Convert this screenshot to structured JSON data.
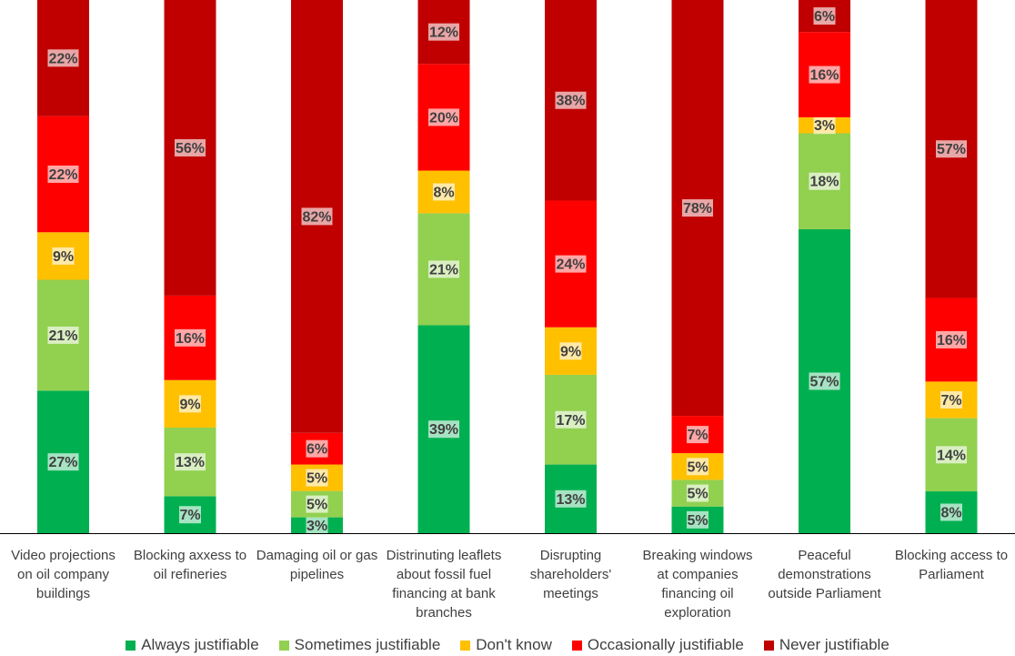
{
  "chart_data": {
    "type": "bar",
    "stacked": true,
    "percent_scale": true,
    "title": "",
    "xlabel": "",
    "ylabel": "",
    "ylim": [
      0,
      100
    ],
    "grid": false,
    "legend_position": "bottom",
    "categories": [
      [
        "Video projections",
        "on oil company",
        "buildings"
      ],
      [
        "Blocking axxess to",
        "oil refineries"
      ],
      [
        "Damaging oil or gas",
        "pipelines"
      ],
      [
        "Distrinuting leaflets",
        "about fossil fuel",
        "financing at bank",
        "branches"
      ],
      [
        "Disrupting",
        "shareholders'",
        "meetings"
      ],
      [
        "Breaking windows",
        "at companies",
        "financing oil",
        "exploration"
      ],
      [
        "Peaceful",
        "demonstrations",
        "outside Parliament"
      ],
      [
        "Blocking access to",
        "Parliament"
      ]
    ],
    "series": [
      {
        "name": "Always justifiable",
        "color": "#00b050",
        "values": [
          27,
          7,
          3,
          39,
          13,
          5,
          57,
          8
        ]
      },
      {
        "name": "Sometimes justifiable",
        "color": "#92d050",
        "values": [
          21,
          13,
          5,
          21,
          17,
          5,
          18,
          14
        ]
      },
      {
        "name": "Don't know",
        "color": "#ffc000",
        "values": [
          9,
          9,
          5,
          8,
          9,
          5,
          3,
          7
        ]
      },
      {
        "name": "Occasionally justifiable",
        "color": "#ff0000",
        "values": [
          22,
          16,
          6,
          20,
          24,
          7,
          16,
          16
        ]
      },
      {
        "name": "Never justifiable",
        "color": "#c00000",
        "values": [
          22,
          56,
          82,
          12,
          38,
          78,
          6,
          57
        ]
      }
    ],
    "value_suffix": "%"
  }
}
